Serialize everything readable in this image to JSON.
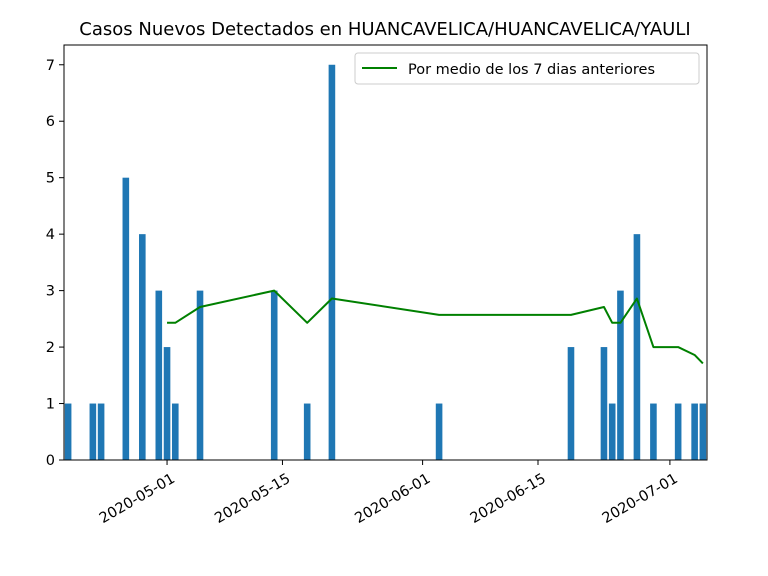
{
  "chart_data": {
    "type": "bar",
    "title": "Casos Nuevos Detectados en HUANCAVELICA/HUANCAVELICA/YAULI",
    "xlabel": "",
    "ylabel": "",
    "x_range": [
      "2020-04-19",
      "2020-07-05"
    ],
    "ylim": [
      0,
      7.35
    ],
    "x_ticks": [
      "2020-05-01",
      "2020-05-15",
      "2020-06-01",
      "2020-06-15",
      "2020-07-01"
    ],
    "y_ticks": [
      0,
      1,
      2,
      3,
      4,
      5,
      6,
      7
    ],
    "grid": false,
    "legend_position": "top-right",
    "bar_color": "#1f77b4",
    "series": [
      {
        "type": "bar",
        "points": [
          {
            "date": "2020-04-19",
            "value": 1
          },
          {
            "date": "2020-04-22",
            "value": 1
          },
          {
            "date": "2020-04-23",
            "value": 1
          },
          {
            "date": "2020-04-26",
            "value": 5
          },
          {
            "date": "2020-04-28",
            "value": 4
          },
          {
            "date": "2020-04-30",
            "value": 3
          },
          {
            "date": "2020-05-01",
            "value": 2
          },
          {
            "date": "2020-05-02",
            "value": 1
          },
          {
            "date": "2020-05-05",
            "value": 3
          },
          {
            "date": "2020-05-14",
            "value": 3
          },
          {
            "date": "2020-05-18",
            "value": 1
          },
          {
            "date": "2020-05-21",
            "value": 7
          },
          {
            "date": "2020-06-03",
            "value": 1
          },
          {
            "date": "2020-06-19",
            "value": 2
          },
          {
            "date": "2020-06-23",
            "value": 2
          },
          {
            "date": "2020-06-24",
            "value": 1
          },
          {
            "date": "2020-06-25",
            "value": 3
          },
          {
            "date": "2020-06-27",
            "value": 4
          },
          {
            "date": "2020-06-29",
            "value": 1
          },
          {
            "date": "2020-07-02",
            "value": 1
          },
          {
            "date": "2020-07-04",
            "value": 1
          },
          {
            "date": "2020-07-05",
            "value": 1
          }
        ]
      },
      {
        "type": "line",
        "name": "Por medio de los 7 dias anteriores",
        "color": "#008000",
        "points": [
          {
            "date": "2020-05-01",
            "value": 2.43
          },
          {
            "date": "2020-05-02",
            "value": 2.43
          },
          {
            "date": "2020-05-05",
            "value": 2.71
          },
          {
            "date": "2020-05-14",
            "value": 3.0
          },
          {
            "date": "2020-05-18",
            "value": 2.43
          },
          {
            "date": "2020-05-21",
            "value": 2.86
          },
          {
            "date": "2020-06-03",
            "value": 2.57
          },
          {
            "date": "2020-06-19",
            "value": 2.57
          },
          {
            "date": "2020-06-23",
            "value": 2.71
          },
          {
            "date": "2020-06-24",
            "value": 2.43
          },
          {
            "date": "2020-06-25",
            "value": 2.43
          },
          {
            "date": "2020-06-27",
            "value": 2.86
          },
          {
            "date": "2020-06-29",
            "value": 2.0
          },
          {
            "date": "2020-07-02",
            "value": 2.0
          },
          {
            "date": "2020-07-04",
            "value": 1.86
          },
          {
            "date": "2020-07-05",
            "value": 1.71
          }
        ]
      }
    ]
  }
}
